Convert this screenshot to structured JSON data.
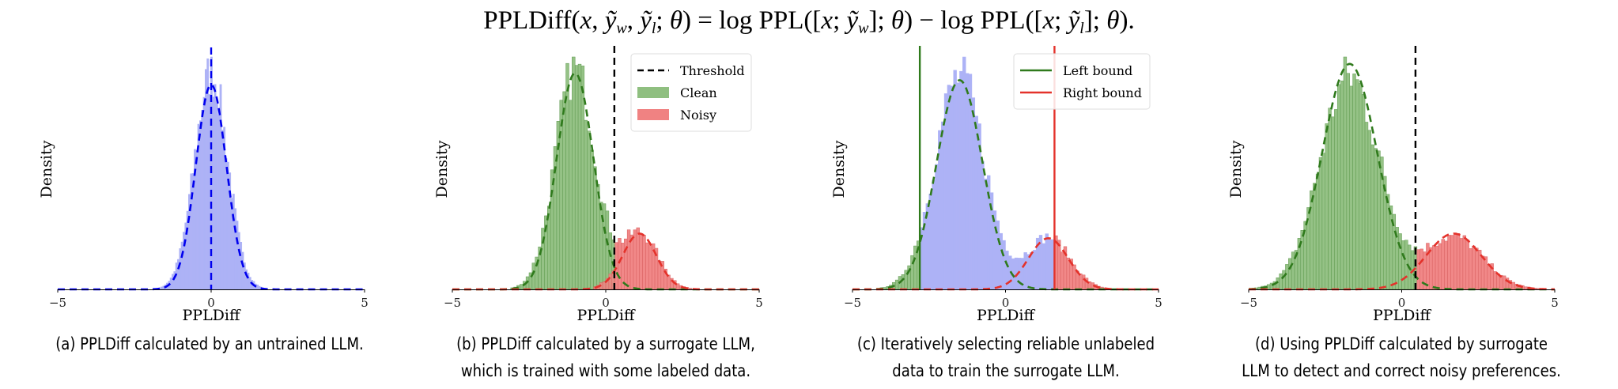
{
  "title_parts": [
    {
      "t": "PPLDiff("
    },
    {
      "t": "x",
      "i": true
    },
    {
      "t": ", "
    },
    {
      "t": "ỹ",
      "i": true
    },
    {
      "t": "w",
      "sub": true
    },
    {
      "t": ", "
    },
    {
      "t": "ỹ",
      "i": true
    },
    {
      "t": "l",
      "sub": true
    },
    {
      "t": "; "
    },
    {
      "t": "θ",
      "i": true
    },
    {
      "t": ") =  log PPL(["
    },
    {
      "t": "x",
      "i": true
    },
    {
      "t": "; "
    },
    {
      "t": "ỹ",
      "i": true
    },
    {
      "t": "w",
      "sub": true
    },
    {
      "t": "]; "
    },
    {
      "t": "θ",
      "i": true
    },
    {
      "t": ") − log PPL(["
    },
    {
      "t": "x",
      "i": true
    },
    {
      "t": "; "
    },
    {
      "t": "ỹ",
      "i": true
    },
    {
      "t": "l",
      "sub": true
    },
    {
      "t": "]; "
    },
    {
      "t": "θ",
      "i": true
    },
    {
      "t": ")."
    }
  ],
  "colors": {
    "unlabeled_hist": "#adb2f6",
    "unlabeled_curve": "#0000ee",
    "clean_hist": "#8fbf80",
    "clean_edge": "#5f9a4f",
    "clean_curve": "#2f7a1c",
    "noisy_hist": "#f08282",
    "noisy_edge": "#d86060",
    "noisy_curve": "#e4322b",
    "threshold": "#000000"
  },
  "chart_data": [
    {
      "id": "a",
      "type": "histogram",
      "xlabel": "PPLDiff",
      "ylabel": "Density",
      "xlim": [
        -5,
        5
      ],
      "xticks": [
        "−5",
        "0",
        "5"
      ],
      "ylim": [
        0,
        1
      ],
      "y_ticks_shown": false,
      "components": [
        {
          "group": "unlabeled",
          "mean": 0.0,
          "std": 0.5,
          "curve_peak": 0.88
        }
      ],
      "hist_coloring": "unlabeled",
      "vlines": [
        {
          "x": 0.0,
          "style": "dashed",
          "color": "unlabeled_curve"
        }
      ],
      "legend": null,
      "caption": [
        "(a) PPLDiff calculated by an untrained LLM."
      ]
    },
    {
      "id": "b",
      "type": "histogram",
      "xlabel": "PPLDiff",
      "ylabel": "Density",
      "xlim": [
        -5,
        5
      ],
      "xticks": [
        "−5",
        "0",
        "5"
      ],
      "ylim": [
        0,
        1
      ],
      "y_ticks_shown": false,
      "components": [
        {
          "group": "clean",
          "mean": -1.0,
          "std": 0.6,
          "curve_peak": 0.93
        },
        {
          "group": "noisy",
          "mean": 1.1,
          "std": 0.55,
          "curve_peak": 0.24
        }
      ],
      "hist_coloring": "by_component",
      "vlines": [
        {
          "x": 0.28,
          "style": "dashed",
          "color": "threshold"
        }
      ],
      "legend": {
        "placement": "top-right",
        "entries": [
          {
            "label": "Threshold",
            "kind": "dashed-line",
            "color": "threshold"
          },
          {
            "label": "Clean",
            "kind": "patch",
            "color": "clean_hist"
          },
          {
            "label": "Noisy",
            "kind": "patch",
            "color": "noisy_hist"
          }
        ]
      },
      "caption": [
        "(b) PPLDiff calculated by a surrogate LLM,",
        "which is trained with some labeled data."
      ]
    },
    {
      "id": "c",
      "type": "histogram",
      "xlabel": "PPLDiff",
      "ylabel": "Density",
      "xlim": [
        -5,
        5
      ],
      "xticks": [
        "−5",
        "0",
        "5"
      ],
      "ylim": [
        0,
        1
      ],
      "y_ticks_shown": false,
      "components": [
        {
          "group": "clean",
          "mean": -1.5,
          "std": 0.75,
          "curve_peak": 0.9
        },
        {
          "group": "noisy",
          "mean": 1.4,
          "std": 0.65,
          "curve_peak": 0.22
        }
      ],
      "hist_coloring": "by_bounds",
      "bounds": {
        "left": -2.8,
        "right": 1.6
      },
      "vlines": [
        {
          "x": -2.8,
          "style": "solid",
          "color": "clean_curve"
        },
        {
          "x": 1.6,
          "style": "solid",
          "color": "noisy_curve"
        }
      ],
      "legend": {
        "placement": "top-right",
        "entries": [
          {
            "label": "Left bound",
            "kind": "solid-line",
            "color": "clean_curve"
          },
          {
            "label": "Right bound",
            "kind": "solid-line",
            "color": "noisy_curve"
          }
        ]
      },
      "caption": [
        "(c) Iteratively selecting reliable unlabeled",
        "data to train the surrogate LLM."
      ]
    },
    {
      "id": "d",
      "type": "histogram",
      "xlabel": "PPLDiff",
      "ylabel": "Density",
      "xlim": [
        -5,
        5
      ],
      "xticks": [
        "−5",
        "0",
        "5"
      ],
      "ylim": [
        0,
        1
      ],
      "y_ticks_shown": false,
      "components": [
        {
          "group": "clean",
          "mean": -1.7,
          "std": 0.9,
          "curve_peak": 0.97
        },
        {
          "group": "noisy",
          "mean": 1.7,
          "std": 0.9,
          "curve_peak": 0.24
        }
      ],
      "hist_coloring": "by_threshold",
      "threshold": 0.45,
      "vlines": [
        {
          "x": 0.45,
          "style": "dashed",
          "color": "threshold"
        }
      ],
      "legend": null,
      "caption": [
        "(d) Using PPLDiff calculated by surrogate",
        "LLM to detect and correct noisy preferences."
      ]
    }
  ]
}
